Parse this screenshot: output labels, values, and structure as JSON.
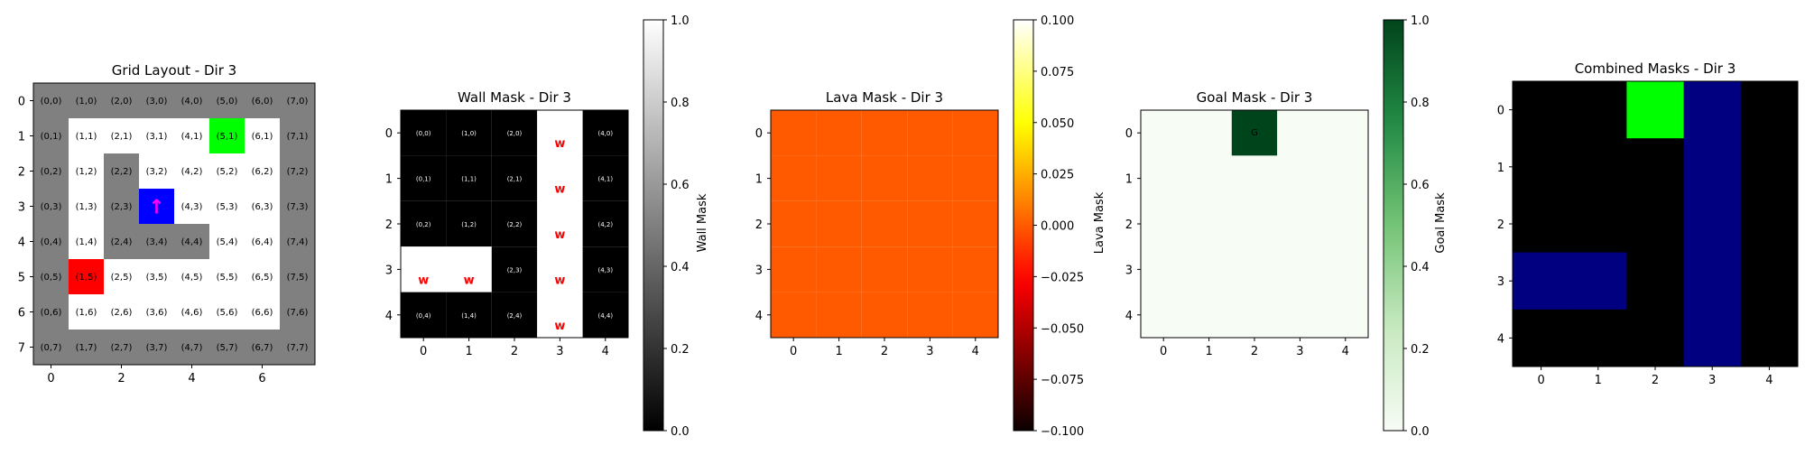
{
  "chart_data": [
    {
      "type": "heatmap",
      "title": "Grid Layout - Dir 3",
      "x_ticks": [
        "0",
        "2",
        "4",
        "6"
      ],
      "y_ticks": [
        "0",
        "1",
        "2",
        "3",
        "4",
        "5",
        "6",
        "7"
      ],
      "grid_size": [
        8,
        8
      ],
      "legend": "none",
      "cell_types": [
        [
          "wall",
          "wall",
          "wall",
          "wall",
          "wall",
          "wall",
          "wall",
          "wall"
        ],
        [
          "wall",
          "floor",
          "floor",
          "floor",
          "floor",
          "goal",
          "floor",
          "wall"
        ],
        [
          "wall",
          "floor",
          "wall",
          "floor",
          "floor",
          "floor",
          "floor",
          "wall"
        ],
        [
          "wall",
          "floor",
          "wall",
          "agent",
          "floor",
          "floor",
          "floor",
          "wall"
        ],
        [
          "wall",
          "floor",
          "wall",
          "wall",
          "wall",
          "floor",
          "floor",
          "wall"
        ],
        [
          "wall",
          "lava",
          "floor",
          "floor",
          "floor",
          "floor",
          "floor",
          "wall"
        ],
        [
          "wall",
          "floor",
          "floor",
          "floor",
          "floor",
          "floor",
          "floor",
          "wall"
        ],
        [
          "wall",
          "wall",
          "wall",
          "wall",
          "wall",
          "wall",
          "wall",
          "wall"
        ]
      ],
      "cell_labels": [
        [
          "(0,0)",
          "(1,0)",
          "(2,0)",
          "(3,0)",
          "(4,0)",
          "(5,0)",
          "(6,0)",
          "(7,0)"
        ],
        [
          "(0,1)",
          "(1,1)",
          "(2,1)",
          "(3,1)",
          "(4,1)",
          "(5,1)",
          "(6,1)",
          "(7,1)"
        ],
        [
          "(0,2)",
          "(1,2)",
          "(2,2)",
          "(3,2)",
          "(4,2)",
          "(5,2)",
          "(6,2)",
          "(7,2)"
        ],
        [
          "(0,3)",
          "(1,3)",
          "(2,3)",
          "",
          "(4,3)",
          "(5,3)",
          "(6,3)",
          "(7,3)"
        ],
        [
          "(0,4)",
          "(1,4)",
          "(2,4)",
          "(3,4)",
          "(4,4)",
          "(5,4)",
          "(6,4)",
          "(7,4)"
        ],
        [
          "(0,5)",
          "(1,5)",
          "(2,5)",
          "(3,5)",
          "(4,5)",
          "(5,5)",
          "(6,5)",
          "(7,5)"
        ],
        [
          "(0,6)",
          "(1,6)",
          "(2,6)",
          "(3,6)",
          "(4,6)",
          "(5,6)",
          "(6,6)",
          "(7,6)"
        ],
        [
          "(0,7)",
          "(1,7)",
          "(2,7)",
          "(3,7)",
          "(4,7)",
          "(5,7)",
          "(6,7)",
          "(7,7)"
        ]
      ],
      "agent_symbol": "↑",
      "colors": {
        "wall": "#808080",
        "floor": "#ffffff",
        "goal": "#00ff00",
        "agent": "#0000ff",
        "lava": "#ff0000",
        "agent_arrow": "#ff00ff"
      }
    },
    {
      "type": "heatmap",
      "title": "Wall Mask - Dir 3",
      "x_ticks": [
        "0",
        "1",
        "2",
        "3",
        "4"
      ],
      "y_ticks": [
        "0",
        "1",
        "2",
        "3",
        "4"
      ],
      "values": [
        [
          0,
          0,
          0,
          1,
          0
        ],
        [
          0,
          0,
          0,
          1,
          0
        ],
        [
          0,
          0,
          0,
          1,
          0
        ],
        [
          1,
          1,
          0,
          1,
          0
        ],
        [
          0,
          0,
          0,
          1,
          0
        ]
      ],
      "cell_labels": [
        [
          "(0,0)",
          "(1,0)",
          "(2,0)",
          "w",
          "(4,0)"
        ],
        [
          "(0,1)",
          "(1,1)",
          "(2,1)",
          "w",
          "(4,1)"
        ],
        [
          "(0,2)",
          "(1,2)",
          "(2,2)",
          "w",
          "(4,2)"
        ],
        [
          "w",
          "w",
          "(2,3)",
          "w",
          "(4,3)"
        ],
        [
          "(0,4)",
          "(1,4)",
          "(2,4)",
          "w",
          "(4,4)"
        ]
      ],
      "colormap": "gray",
      "clim": [
        0,
        1
      ],
      "colorbar_label": "Wall Mask",
      "colorbar_ticks": [
        "0.0",
        "0.2",
        "0.4",
        "0.6",
        "0.8",
        "1.0"
      ],
      "colorbar_tick_values": [
        0,
        0.2,
        0.4,
        0.6,
        0.8,
        1.0
      ]
    },
    {
      "type": "heatmap",
      "title": "Lava Mask - Dir 3",
      "x_ticks": [
        "0",
        "1",
        "2",
        "3",
        "4"
      ],
      "y_ticks": [
        "0",
        "1",
        "2",
        "3",
        "4"
      ],
      "values": [
        [
          0,
          0,
          0,
          0,
          0
        ],
        [
          0,
          0,
          0,
          0,
          0
        ],
        [
          0,
          0,
          0,
          0,
          0
        ],
        [
          0,
          0,
          0,
          0,
          0
        ],
        [
          0,
          0,
          0,
          0,
          0
        ]
      ],
      "colormap": "hot",
      "clim": [
        -0.1,
        0.1
      ],
      "colorbar_label": "Lava Mask",
      "colorbar_ticks": [
        "0.100",
        "0.075",
        "0.050",
        "0.025",
        "0.000",
        "−0.025",
        "−0.050",
        "−0.075",
        "−0.100"
      ],
      "colorbar_tick_values": [
        0.1,
        0.075,
        0.05,
        0.025,
        0,
        -0.025,
        -0.05,
        -0.075,
        -0.1
      ]
    },
    {
      "type": "heatmap",
      "title": "Goal Mask - Dir 3",
      "x_ticks": [
        "0",
        "1",
        "2",
        "3",
        "4"
      ],
      "y_ticks": [
        "0",
        "1",
        "2",
        "3",
        "4"
      ],
      "values": [
        [
          0,
          0,
          1,
          0,
          0
        ],
        [
          0,
          0,
          0,
          0,
          0
        ],
        [
          0,
          0,
          0,
          0,
          0
        ],
        [
          0,
          0,
          0,
          0,
          0
        ],
        [
          0,
          0,
          0,
          0,
          0
        ]
      ],
      "cell_labels": [
        [
          "",
          "",
          "G",
          "",
          ""
        ],
        [
          "",
          "",
          "",
          "",
          ""
        ],
        [
          "",
          "",
          "",
          "",
          ""
        ],
        [
          "",
          "",
          "",
          "",
          ""
        ],
        [
          "",
          "",
          "",
          "",
          ""
        ]
      ],
      "colormap": "greens",
      "clim": [
        0,
        1
      ],
      "colorbar_label": "Goal Mask",
      "colorbar_ticks": [
        "0.0",
        "0.2",
        "0.4",
        "0.6",
        "0.8",
        "1.0"
      ],
      "colorbar_tick_values": [
        0,
        0.2,
        0.4,
        0.6,
        0.8,
        1.0
      ]
    },
    {
      "type": "heatmap",
      "title": "Combined Masks - Dir 3",
      "x_ticks": [
        "0",
        "1",
        "2",
        "3",
        "4"
      ],
      "y_ticks": [
        "0",
        "1",
        "2",
        "3",
        "4"
      ],
      "cell_types": [
        [
          "none",
          "none",
          "goal",
          "wall",
          "none"
        ],
        [
          "none",
          "none",
          "none",
          "wall",
          "none"
        ],
        [
          "none",
          "none",
          "none",
          "wall",
          "none"
        ],
        [
          "wall",
          "wall",
          "none",
          "wall",
          "none"
        ],
        [
          "none",
          "none",
          "none",
          "wall",
          "none"
        ]
      ],
      "colors": {
        "none": "#000000",
        "wall": "#000080",
        "goal": "#00ff00"
      }
    }
  ]
}
